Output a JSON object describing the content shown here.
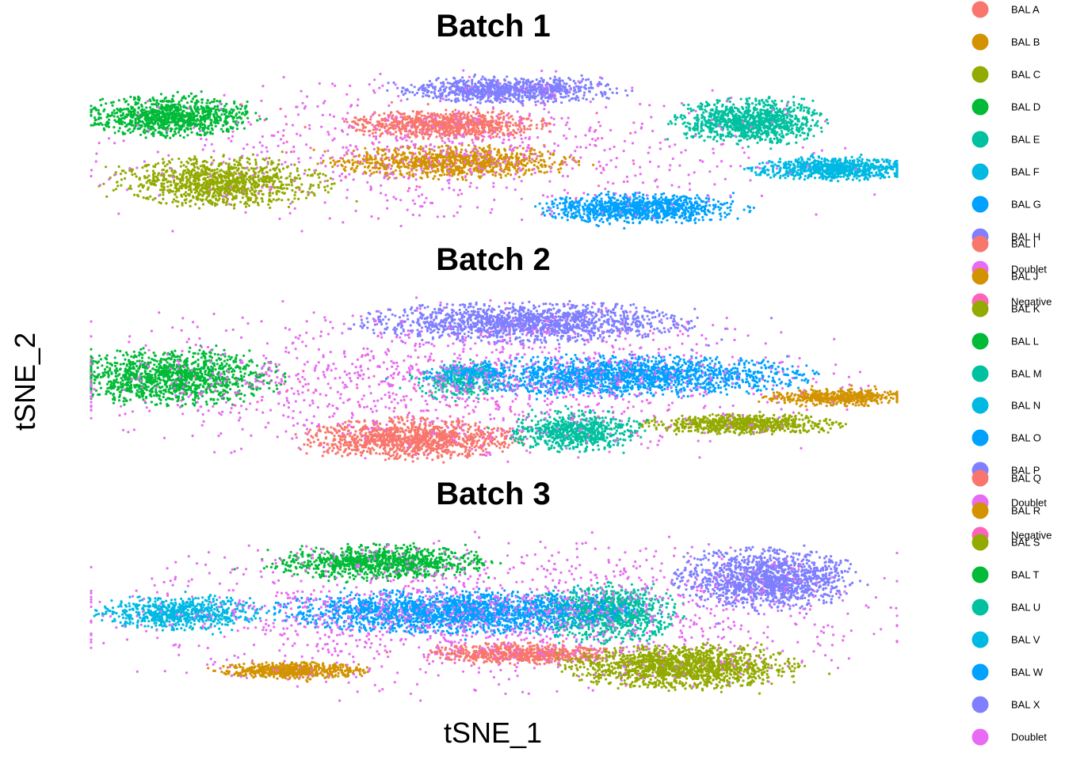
{
  "chart_data": {
    "type": "scatter",
    "xlabel": "tSNE_1",
    "ylabel": "tSNE_2",
    "grid": false,
    "legend_placement": "right",
    "panels": [
      {
        "title": "Batch 1",
        "series": [
          {
            "name": "BAL A",
            "color": "#F8766D",
            "clusters": [
              {
                "cx": 0.44,
                "cy": 0.35,
                "rx": 0.12,
                "ry": 0.09,
                "n": 900
              }
            ]
          },
          {
            "name": "BAL B",
            "color": "#D39200",
            "clusters": [
              {
                "cx": 0.45,
                "cy": 0.58,
                "rx": 0.15,
                "ry": 0.1,
                "n": 1000
              }
            ]
          },
          {
            "name": "BAL C",
            "color": "#93AA00",
            "clusters": [
              {
                "cx": 0.16,
                "cy": 0.7,
                "rx": 0.13,
                "ry": 0.15,
                "n": 1100
              }
            ]
          },
          {
            "name": "BAL D",
            "color": "#00BA38",
            "clusters": [
              {
                "cx": 0.1,
                "cy": 0.3,
                "rx": 0.1,
                "ry": 0.12,
                "n": 1000
              }
            ]
          },
          {
            "name": "BAL E",
            "color": "#00C19F",
            "clusters": [
              {
                "cx": 0.82,
                "cy": 0.33,
                "rx": 0.09,
                "ry": 0.14,
                "n": 1000
              }
            ]
          },
          {
            "name": "BAL F",
            "color": "#00B9E3",
            "clusters": [
              {
                "cx": 0.92,
                "cy": 0.62,
                "rx": 0.1,
                "ry": 0.07,
                "n": 800
              }
            ]
          },
          {
            "name": "BAL G",
            "color": "#00A1FF",
            "clusters": [
              {
                "cx": 0.68,
                "cy": 0.86,
                "rx": 0.12,
                "ry": 0.09,
                "n": 1000
              }
            ]
          },
          {
            "name": "BAL H",
            "color": "#7F7FFF",
            "clusters": [
              {
                "cx": 0.52,
                "cy": 0.14,
                "rx": 0.13,
                "ry": 0.08,
                "n": 900
              }
            ]
          },
          {
            "name": "Doublet",
            "color": "#E76BF3",
            "clusters": [
              {
                "cx": 0.45,
                "cy": 0.5,
                "rx": 0.45,
                "ry": 0.45,
                "n": 700
              }
            ]
          },
          {
            "name": "Negative",
            "color": "#FF62BC",
            "clusters": [
              {
                "cx": 0.5,
                "cy": 0.5,
                "rx": 0.4,
                "ry": 0.4,
                "n": 40
              }
            ]
          }
        ]
      },
      {
        "title": "Batch 2",
        "series": [
          {
            "name": "BAL I",
            "color": "#F8766D",
            "clusters": [
              {
                "cx": 0.4,
                "cy": 0.85,
                "rx": 0.13,
                "ry": 0.12,
                "n": 1200
              }
            ]
          },
          {
            "name": "BAL J",
            "color": "#D39200",
            "clusters": [
              {
                "cx": 0.93,
                "cy": 0.6,
                "rx": 0.09,
                "ry": 0.05,
                "n": 500
              }
            ]
          },
          {
            "name": "BAL K",
            "color": "#93AA00",
            "clusters": [
              {
                "cx": 0.81,
                "cy": 0.76,
                "rx": 0.12,
                "ry": 0.06,
                "n": 700
              }
            ]
          },
          {
            "name": "BAL L",
            "color": "#00BA38",
            "clusters": [
              {
                "cx": 0.1,
                "cy": 0.48,
                "rx": 0.13,
                "ry": 0.17,
                "n": 1300
              }
            ]
          },
          {
            "name": "BAL M",
            "color": "#00C19F",
            "clusters": [
              {
                "cx": 0.6,
                "cy": 0.8,
                "rx": 0.08,
                "ry": 0.12,
                "n": 700
              },
              {
                "cx": 0.46,
                "cy": 0.5,
                "rx": 0.06,
                "ry": 0.12,
                "n": 300
              }
            ]
          },
          {
            "name": "BAL N",
            "color": "#00B9E3",
            "clusters": [
              {
                "cx": 0.47,
                "cy": 0.45,
                "rx": 0.05,
                "ry": 0.04,
                "n": 150
              }
            ]
          },
          {
            "name": "BAL O",
            "color": "#00A1FF",
            "clusters": [
              {
                "cx": 0.66,
                "cy": 0.47,
                "rx": 0.23,
                "ry": 0.12,
                "n": 1800
              }
            ]
          },
          {
            "name": "BAL P",
            "color": "#7F7FFF",
            "clusters": [
              {
                "cx": 0.54,
                "cy": 0.15,
                "rx": 0.2,
                "ry": 0.12,
                "n": 1500
              }
            ]
          },
          {
            "name": "Doublet",
            "color": "#E76BF3",
            "clusters": [
              {
                "cx": 0.45,
                "cy": 0.5,
                "rx": 0.48,
                "ry": 0.45,
                "n": 1200
              }
            ]
          },
          {
            "name": "Negative",
            "color": "#FF62BC",
            "clusters": [
              {
                "cx": 0.5,
                "cy": 0.5,
                "rx": 0.4,
                "ry": 0.4,
                "n": 60
              }
            ]
          }
        ]
      },
      {
        "title": "Batch 3",
        "series": [
          {
            "name": "BAL Q",
            "color": "#F8766D",
            "clusters": [
              {
                "cx": 0.53,
                "cy": 0.72,
                "rx": 0.11,
                "ry": 0.06,
                "n": 700
              }
            ]
          },
          {
            "name": "BAL R",
            "color": "#D39200",
            "clusters": [
              {
                "cx": 0.25,
                "cy": 0.82,
                "rx": 0.09,
                "ry": 0.05,
                "n": 600
              }
            ]
          },
          {
            "name": "BAL S",
            "color": "#93AA00",
            "clusters": [
              {
                "cx": 0.73,
                "cy": 0.8,
                "rx": 0.14,
                "ry": 0.13,
                "n": 1500
              }
            ]
          },
          {
            "name": "BAL T",
            "color": "#00BA38",
            "clusters": [
              {
                "cx": 0.36,
                "cy": 0.18,
                "rx": 0.13,
                "ry": 0.1,
                "n": 1000
              }
            ]
          },
          {
            "name": "BAL U",
            "color": "#00C19F",
            "clusters": [
              {
                "cx": 0.64,
                "cy": 0.48,
                "rx": 0.09,
                "ry": 0.17,
                "n": 1000
              }
            ]
          },
          {
            "name": "BAL V",
            "color": "#00B9E3",
            "clusters": [
              {
                "cx": 0.11,
                "cy": 0.48,
                "rx": 0.1,
                "ry": 0.1,
                "n": 700
              }
            ]
          },
          {
            "name": "BAL W",
            "color": "#00A1FF",
            "clusters": [
              {
                "cx": 0.45,
                "cy": 0.47,
                "rx": 0.21,
                "ry": 0.13,
                "n": 2000
              }
            ]
          },
          {
            "name": "BAL X",
            "color": "#7F7FFF",
            "clusters": [
              {
                "cx": 0.84,
                "cy": 0.28,
                "rx": 0.11,
                "ry": 0.18,
                "n": 1400
              }
            ]
          },
          {
            "name": "Doublet",
            "color": "#E76BF3",
            "clusters": [
              {
                "cx": 0.5,
                "cy": 0.5,
                "rx": 0.5,
                "ry": 0.45,
                "n": 1400
              }
            ]
          }
        ]
      }
    ],
    "legend": [
      {
        "label": "BAL A",
        "color": "#F8766D"
      },
      {
        "label": "BAL B",
        "color": "#D39200"
      },
      {
        "label": "BAL C",
        "color": "#93AA00"
      },
      {
        "label": "BAL D",
        "color": "#00BA38"
      },
      {
        "label": "BAL E",
        "color": "#00C19F"
      },
      {
        "label": "BAL F",
        "color": "#00B9E3"
      },
      {
        "label": "BAL G",
        "color": "#00A1FF"
      },
      {
        "label": "BAL H",
        "color": "#7F7FFF"
      },
      {
        "label": "Doublet",
        "color": "#E76BF3"
      },
      {
        "label": "Negative",
        "color": "#FF62BC"
      },
      {
        "label": "BAL I",
        "color": "#F8766D"
      },
      {
        "label": "BAL J",
        "color": "#D39200"
      },
      {
        "label": "BAL K",
        "color": "#93AA00"
      },
      {
        "label": "BAL L",
        "color": "#00BA38"
      },
      {
        "label": "BAL M",
        "color": "#00C19F"
      },
      {
        "label": "BAL N",
        "color": "#00B9E3"
      },
      {
        "label": "BAL O",
        "color": "#00A1FF"
      },
      {
        "label": "BAL P",
        "color": "#7F7FFF"
      },
      {
        "label": "Doublet",
        "color": "#E76BF3"
      },
      {
        "label": "Negative",
        "color": "#FF62BC"
      },
      {
        "label": "BAL Q",
        "color": "#F8766D"
      },
      {
        "label": "BAL R",
        "color": "#D39200"
      },
      {
        "label": "BAL S",
        "color": "#93AA00"
      },
      {
        "label": "BAL T",
        "color": "#00BA38"
      },
      {
        "label": "BAL U",
        "color": "#00C19F"
      },
      {
        "label": "BAL V",
        "color": "#00B9E3"
      },
      {
        "label": "BAL W",
        "color": "#00A1FF"
      },
      {
        "label": "BAL X",
        "color": "#7F7FFF"
      },
      {
        "label": "Doublet",
        "color": "#E76BF3"
      }
    ]
  }
}
